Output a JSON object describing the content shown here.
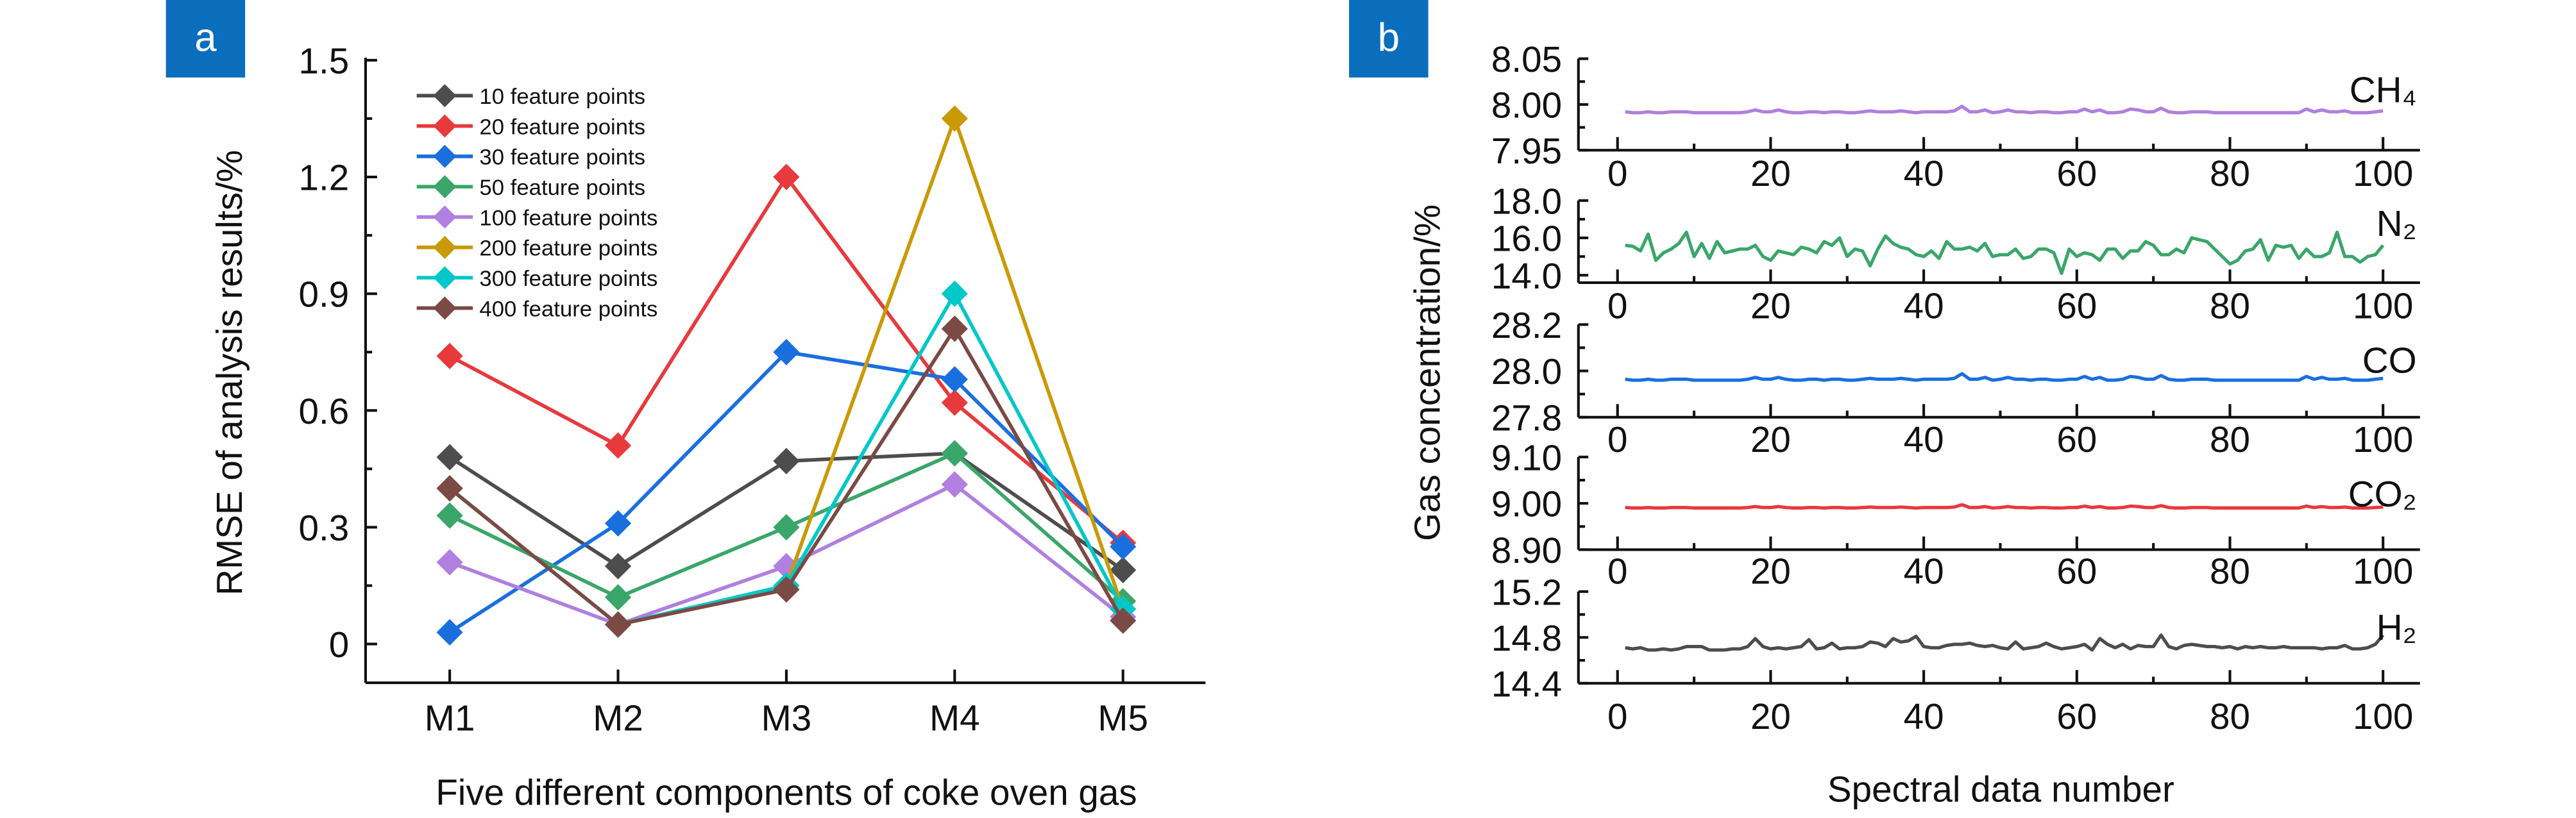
{
  "panels": {
    "a": {
      "label": "a",
      "badge_color": "#0a6ebd"
    },
    "b": {
      "label": "b",
      "badge_color": "#0a6ebd"
    }
  },
  "chart_data": [
    {
      "type": "line",
      "panel": "a",
      "xlabel": "Five different components of coke oven gas",
      "ylabel": "RMSE of analysis results/%",
      "categories": [
        "M1",
        "M2",
        "M3",
        "M4",
        "M5"
      ],
      "ylim": [
        -0.1,
        1.5
      ],
      "yticks": [
        "0",
        "0.3",
        "0.6",
        "0.9",
        "1.2",
        "1.5"
      ],
      "ytick_values": [
        0,
        0.3,
        0.6,
        0.9,
        1.2,
        1.5
      ],
      "marker": "diamond",
      "grid": false,
      "legend_position": "top-left",
      "series": [
        {
          "name": "10 feature points",
          "color": "#4d4d4d",
          "values": [
            0.48,
            0.2,
            0.47,
            0.49,
            0.19
          ]
        },
        {
          "name": "20 feature points",
          "color": "#e8393d",
          "values": [
            0.74,
            0.51,
            1.2,
            0.62,
            0.26
          ]
        },
        {
          "name": "30 feature points",
          "color": "#1a6fdf",
          "values": [
            0.03,
            0.31,
            0.75,
            0.68,
            0.25
          ]
        },
        {
          "name": "50 feature points",
          "color": "#3aa66a",
          "values": [
            0.33,
            0.12,
            0.3,
            0.49,
            0.11
          ]
        },
        {
          "name": "100 feature points",
          "color": "#b07fe0",
          "values": [
            0.21,
            0.05,
            0.2,
            0.41,
            0.07
          ]
        },
        {
          "name": "200 feature points",
          "color": "#c99a06",
          "values": [
            0.4,
            0.05,
            0.15,
            1.35,
            0.09
          ]
        },
        {
          "name": "300 feature points",
          "color": "#00c8c8",
          "values": [
            0.4,
            0.05,
            0.15,
            0.9,
            0.09
          ]
        },
        {
          "name": "400 feature points",
          "color": "#7b4a45",
          "values": [
            0.4,
            0.05,
            0.14,
            0.81,
            0.06
          ]
        }
      ]
    },
    {
      "type": "line",
      "panel": "b",
      "xlabel": "Spectral data number",
      "ylabel": "Gas concentration/%",
      "xlim": [
        0,
        100
      ],
      "xticks": [
        "0",
        "20",
        "40",
        "60",
        "80",
        "100"
      ],
      "xtick_values": [
        0,
        20,
        40,
        60,
        80,
        100
      ],
      "grid": false,
      "subplots": [
        {
          "name": "CH₄",
          "color": "#b07fe0",
          "ylim": [
            7.95,
            8.05
          ],
          "yticks": [
            "7.95",
            "8.00",
            "8.05"
          ],
          "ytick_values": [
            7.95,
            8.0,
            8.05
          ],
          "values": [
            7.992,
            7.991,
            7.991,
            7.992,
            7.991,
            7.991,
            7.992,
            7.992,
            7.992,
            7.991,
            7.991,
            7.991,
            7.991,
            7.991,
            7.991,
            7.991,
            7.992,
            7.994,
            7.992,
            7.992,
            7.994,
            7.992,
            7.991,
            7.991,
            7.992,
            7.992,
            7.991,
            7.992,
            7.992,
            7.991,
            7.991,
            7.992,
            7.993,
            7.992,
            7.992,
            7.992,
            7.993,
            7.992,
            7.991,
            7.992,
            7.992,
            7.992,
            7.992,
            7.993,
            7.998,
            7.992,
            7.992,
            7.994,
            7.991,
            7.992,
            7.994,
            7.992,
            7.992,
            7.991,
            7.992,
            7.992,
            7.991,
            7.991,
            7.992,
            7.992,
            7.995,
            7.992,
            7.994,
            7.991,
            7.991,
            7.992,
            7.995,
            7.994,
            7.992,
            7.992,
            7.996,
            7.992,
            7.991,
            7.991,
            7.992,
            7.992,
            7.992,
            7.991,
            7.991,
            7.991,
            7.991,
            7.991,
            7.991,
            7.991,
            7.991,
            7.991,
            7.991,
            7.991,
            7.991,
            7.995,
            7.992,
            7.994,
            7.992,
            7.992,
            7.993,
            7.991,
            7.991,
            7.991,
            7.992,
            7.993
          ]
        },
        {
          "name": "N₂",
          "color": "#3aa66a",
          "ylim": [
            13.6,
            18.0
          ],
          "yticks": [
            "14.0",
            "16.0",
            "18.0"
          ],
          "ytick_values": [
            14,
            16,
            18
          ],
          "values": [
            15.6,
            15.55,
            15.3,
            16.2,
            14.8,
            15.2,
            15.4,
            15.7,
            16.3,
            15.0,
            15.7,
            14.9,
            15.8,
            15.2,
            15.3,
            15.4,
            15.4,
            15.6,
            15.0,
            14.8,
            15.3,
            15.2,
            15.1,
            15.5,
            15.4,
            15.2,
            15.8,
            15.6,
            16.0,
            15.0,
            15.4,
            15.3,
            14.5,
            15.4,
            16.1,
            15.7,
            15.5,
            15.4,
            15.1,
            15.0,
            15.3,
            14.9,
            15.8,
            15.4,
            15.4,
            15.5,
            15.3,
            15.7,
            15.0,
            15.1,
            15.1,
            15.4,
            14.9,
            15.0,
            15.4,
            15.4,
            15.2,
            14.1,
            15.4,
            15.0,
            15.2,
            15.1,
            14.8,
            15.4,
            15.4,
            14.9,
            15.3,
            15.3,
            15.8,
            15.6,
            15.1,
            15.1,
            15.4,
            15.2,
            16.0,
            15.9,
            15.8,
            15.4,
            15.0,
            14.6,
            14.8,
            15.3,
            15.4,
            15.9,
            14.8,
            15.6,
            15.5,
            15.6,
            14.9,
            15.4,
            15.0,
            15.0,
            15.2,
            16.3,
            15.0,
            15.0,
            14.7,
            15.0,
            15.1,
            15.6
          ]
        },
        {
          "name": "CO",
          "color": "#1a6fdf",
          "ylim": [
            27.8,
            28.2
          ],
          "yticks": [
            "27.8",
            "28.0",
            "28.2"
          ],
          "ytick_values": [
            27.8,
            28.0,
            28.2
          ],
          "values": [
            27.964,
            27.96,
            27.96,
            27.964,
            27.96,
            27.96,
            27.964,
            27.964,
            27.964,
            27.96,
            27.96,
            27.96,
            27.96,
            27.96,
            27.96,
            27.96,
            27.964,
            27.972,
            27.964,
            27.964,
            27.972,
            27.964,
            27.96,
            27.96,
            27.964,
            27.964,
            27.96,
            27.964,
            27.964,
            27.96,
            27.96,
            27.964,
            27.968,
            27.964,
            27.964,
            27.964,
            27.968,
            27.964,
            27.96,
            27.964,
            27.964,
            27.964,
            27.964,
            27.968,
            27.988,
            27.964,
            27.964,
            27.972,
            27.96,
            27.964,
            27.972,
            27.964,
            27.964,
            27.96,
            27.964,
            27.964,
            27.96,
            27.96,
            27.964,
            27.964,
            27.976,
            27.964,
            27.972,
            27.96,
            27.96,
            27.964,
            27.976,
            27.972,
            27.964,
            27.964,
            27.98,
            27.964,
            27.96,
            27.96,
            27.964,
            27.964,
            27.964,
            27.96,
            27.96,
            27.96,
            27.96,
            27.96,
            27.96,
            27.96,
            27.96,
            27.96,
            27.96,
            27.96,
            27.96,
            27.976,
            27.964,
            27.972,
            27.964,
            27.964,
            27.968,
            27.96,
            27.96,
            27.96,
            27.964,
            27.968
          ]
        },
        {
          "name": "CO₂",
          "color": "#e8393d",
          "ylim": [
            8.9,
            9.1
          ],
          "yticks": [
            "8.90",
            "9.00",
            "9.10"
          ],
          "ytick_values": [
            8.9,
            9.0,
            9.1
          ],
          "values": [
            8.991,
            8.99,
            8.99,
            8.991,
            8.99,
            8.99,
            8.991,
            8.991,
            8.991,
            8.99,
            8.99,
            8.99,
            8.99,
            8.99,
            8.99,
            8.99,
            8.991,
            8.993,
            8.991,
            8.991,
            8.993,
            8.991,
            8.99,
            8.99,
            8.991,
            8.991,
            8.99,
            8.991,
            8.991,
            8.99,
            8.99,
            8.991,
            8.992,
            8.991,
            8.991,
            8.991,
            8.992,
            8.991,
            8.99,
            8.991,
            8.991,
            8.991,
            8.991,
            8.992,
            8.997,
            8.991,
            8.991,
            8.993,
            8.99,
            8.991,
            8.993,
            8.991,
            8.991,
            8.99,
            8.991,
            8.991,
            8.99,
            8.99,
            8.991,
            8.991,
            8.994,
            8.991,
            8.993,
            8.99,
            8.99,
            8.991,
            8.994,
            8.993,
            8.991,
            8.991,
            8.995,
            8.991,
            8.99,
            8.99,
            8.991,
            8.991,
            8.991,
            8.99,
            8.99,
            8.99,
            8.99,
            8.99,
            8.99,
            8.99,
            8.99,
            8.99,
            8.99,
            8.99,
            8.99,
            8.994,
            8.991,
            8.993,
            8.991,
            8.991,
            8.992,
            8.99,
            8.99,
            8.99,
            8.991,
            8.992
          ]
        },
        {
          "name": "H₂",
          "color": "#4d4d4d",
          "ylim": [
            14.4,
            15.2
          ],
          "yticks": [
            "14.4",
            "14.8",
            "15.2"
          ],
          "ytick_values": [
            14.4,
            14.8,
            15.2
          ],
          "values": [
            14.71,
            14.7,
            14.71,
            14.69,
            14.69,
            14.7,
            14.69,
            14.7,
            14.72,
            14.72,
            14.72,
            14.69,
            14.69,
            14.69,
            14.7,
            14.7,
            14.72,
            14.79,
            14.72,
            14.7,
            14.71,
            14.7,
            14.71,
            14.72,
            14.78,
            14.7,
            14.71,
            14.75,
            14.7,
            14.71,
            14.71,
            14.72,
            14.76,
            14.75,
            14.72,
            14.79,
            14.76,
            14.77,
            14.81,
            14.72,
            14.71,
            14.71,
            14.73,
            14.74,
            14.74,
            14.75,
            14.73,
            14.72,
            14.73,
            14.71,
            14.7,
            14.76,
            14.7,
            14.71,
            14.72,
            14.75,
            14.72,
            14.7,
            14.71,
            14.72,
            14.74,
            14.69,
            14.79,
            14.74,
            14.71,
            14.74,
            14.7,
            14.73,
            14.72,
            14.72,
            14.82,
            14.72,
            14.7,
            14.73,
            14.74,
            14.73,
            14.72,
            14.72,
            14.71,
            14.72,
            14.7,
            14.72,
            14.71,
            14.72,
            14.71,
            14.71,
            14.72,
            14.71,
            14.71,
            14.71,
            14.71,
            14.7,
            14.71,
            14.71,
            14.73,
            14.7,
            14.7,
            14.71,
            14.74,
            14.82
          ]
        }
      ]
    }
  ]
}
